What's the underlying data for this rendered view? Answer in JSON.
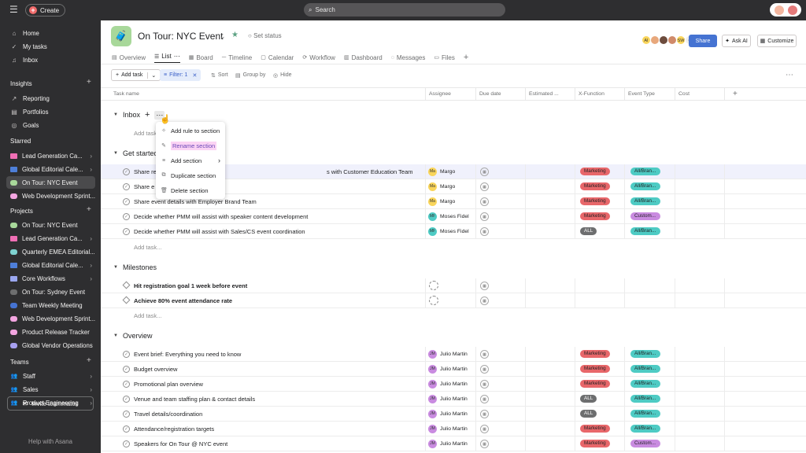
{
  "topbar": {
    "create_label": "Create",
    "search_placeholder": "Search"
  },
  "sidebar": {
    "nav": [
      {
        "label": "Home",
        "icon": "home-icon"
      },
      {
        "label": "My tasks",
        "icon": "check-circle-icon"
      },
      {
        "label": "Inbox",
        "icon": "bell-icon"
      }
    ],
    "insights_title": "Insights",
    "insights": [
      {
        "label": "Reporting"
      },
      {
        "label": "Portfolios"
      },
      {
        "label": "Goals"
      }
    ],
    "starred_title": "Starred",
    "starred": [
      {
        "label": "Lead Generation Ca...",
        "color": "#f06fb5",
        "folder": true
      },
      {
        "label": "Global Editorial Cale...",
        "color": "#4e7fd9",
        "folder": true
      },
      {
        "label": "On Tour: NYC Event",
        "color": "#a8d89a"
      },
      {
        "label": "Web Development Sprint...",
        "color": "#f3a5e0"
      }
    ],
    "projects_title": "Projects",
    "projects": [
      {
        "label": "On Tour: NYC Event",
        "color": "#a8d89a"
      },
      {
        "label": "Lead Generation Ca...",
        "color": "#f06fb5",
        "folder": true
      },
      {
        "label": "Quarterly EMEA Editorial...",
        "color": "#7fd3d1"
      },
      {
        "label": "Global Editorial Cale...",
        "color": "#4e7fd9",
        "folder": true
      },
      {
        "label": "Core Workflows",
        "color": "#9aa7f0",
        "folder": true
      },
      {
        "label": "On Tour: Sydney Event",
        "color": "#6d6e6f"
      },
      {
        "label": "Team Weekly Meeting",
        "color": "#4573d2"
      },
      {
        "label": "Web Development Sprint...",
        "color": "#f3a5e0"
      },
      {
        "label": "Product Release Tracker",
        "color": "#f3a5e0"
      },
      {
        "label": "Global Vendor Operations",
        "color": "#a7a0f0"
      }
    ],
    "teams_title": "Teams",
    "teams": [
      {
        "label": "Staff"
      },
      {
        "label": "Sales"
      },
      {
        "label": "Product Engineering"
      }
    ],
    "invite_label": "Invite teammates",
    "help_label": "Help with Asana"
  },
  "project": {
    "title": "On Tour: NYC Event",
    "set_status": "Set status",
    "share": "Share",
    "ask_ai": "Ask AI",
    "customize": "Customize",
    "member_count": "6",
    "members": [
      {
        "initials": "AI",
        "color": "#f9d55b"
      },
      {
        "initials": "",
        "color": "#e8a87c"
      },
      {
        "initials": "",
        "color": "#6d4c3d"
      },
      {
        "initials": "",
        "color": "#d08a6a"
      },
      {
        "initials": "SW",
        "color": "#f9d55b"
      }
    ]
  },
  "tabs": [
    {
      "label": "Overview"
    },
    {
      "label": "List"
    },
    {
      "label": "Board"
    },
    {
      "label": "Timeline"
    },
    {
      "label": "Calendar"
    },
    {
      "label": "Workflow"
    },
    {
      "label": "Dashboard"
    },
    {
      "label": "Messages"
    },
    {
      "label": "Files"
    }
  ],
  "toolbar": {
    "add_task": "Add task",
    "filter": "Filter: 1",
    "sort": "Sort",
    "group_by": "Group by",
    "hide": "Hide"
  },
  "columns": {
    "task_name": "Task name",
    "assignee": "Assignee",
    "due_date": "Due date",
    "estimated": "Estimated ...",
    "x_function": "X-Function",
    "event_type": "Event Type",
    "cost": "Cost"
  },
  "add_task_row": "Add task...",
  "sections": {
    "inbox": "Inbox",
    "get_started": "Get started",
    "milestones": "Milestones",
    "overview": "Overview"
  },
  "menu": {
    "items": [
      {
        "label": "Add rule to section",
        "icon": "sparkle-icon"
      },
      {
        "label": "Rename section",
        "icon": "pencil-icon"
      },
      {
        "label": "Add section",
        "icon": "add-section-icon"
      },
      {
        "label": "Duplicate section",
        "icon": "duplicate-icon"
      },
      {
        "label": "Delete section",
        "icon": "trash-icon"
      }
    ]
  },
  "get_started_rows": [
    {
      "name": "Share re",
      "name_tail": "s with Customer Education Team",
      "assignee": "Margo",
      "initials": "Ma",
      "avcolor": "#f9d55b",
      "xf": "Marketing",
      "xfcolor": "#e8676a",
      "et": "All/Bran...",
      "etcolor": "#4ecbc4",
      "highlight": true
    },
    {
      "name": "Share e",
      "assignee": "Margo",
      "initials": "Ma",
      "avcolor": "#f9d55b",
      "xf": "Marketing",
      "xfcolor": "#e8676a",
      "et": "All/Bran...",
      "etcolor": "#4ecbc4"
    },
    {
      "name": "Share event details with Employer Brand Team",
      "assignee": "Margo",
      "initials": "Ma",
      "avcolor": "#f9d55b",
      "xf": "Marketing",
      "xfcolor": "#e8676a",
      "et": "All/Bran...",
      "etcolor": "#4ecbc4"
    },
    {
      "name": "Decide whether PMM will assist with speaker content development",
      "assignee": "Moses Fidel",
      "initials": "MF",
      "avcolor": "#4ecbc4",
      "xf": "Marketing",
      "xfcolor": "#e8676a",
      "et": "Custom...",
      "etcolor": "#c98be0"
    },
    {
      "name": "Decide whether PMM will assist  with Sales/CS event coordination",
      "assignee": "Moses Fidel",
      "initials": "MF",
      "avcolor": "#4ecbc4",
      "xf": "ALL",
      "xfcolor": "#6d6e6f",
      "et": "All/Bran...",
      "etcolor": "#4ecbc4"
    }
  ],
  "milestone_rows": [
    {
      "name": "Hit registration goal 1 week before event"
    },
    {
      "name": "Achieve 80% event attendance rate"
    }
  ],
  "overview_rows": [
    {
      "name": "Event brief: Everything you need to know",
      "assignee": "Julio Martin",
      "initials": "JM",
      "xf": "Marketing",
      "xfcolor": "#e8676a",
      "et": "All/Bran...",
      "etcolor": "#4ecbc4"
    },
    {
      "name": "Budget overview",
      "assignee": "Julio Martin",
      "initials": "JM",
      "xf": "Marketing",
      "xfcolor": "#e8676a",
      "et": "All/Bran...",
      "etcolor": "#4ecbc4"
    },
    {
      "name": "Promotional plan overview",
      "assignee": "Julio Martin",
      "initials": "JM",
      "xf": "Marketing",
      "xfcolor": "#e8676a",
      "et": "All/Bran...",
      "etcolor": "#4ecbc4"
    },
    {
      "name": "Venue and team staffing plan & contact details",
      "assignee": "Julio Martin",
      "initials": "JM",
      "xf": "ALL",
      "xfcolor": "#6d6e6f",
      "et": "All/Bran...",
      "etcolor": "#4ecbc4"
    },
    {
      "name": "Travel details/coordination",
      "assignee": "Julio Martin",
      "initials": "JM",
      "xf": "ALL",
      "xfcolor": "#6d6e6f",
      "et": "All/Bran...",
      "etcolor": "#4ecbc4"
    },
    {
      "name": "Attendance/registration targets",
      "assignee": "Julio Martin",
      "initials": "JM",
      "xf": "Marketing",
      "xfcolor": "#e8676a",
      "et": "All/Bran...",
      "etcolor": "#4ecbc4"
    },
    {
      "name": "Speakers for On Tour @ NYC event",
      "assignee": "Julio Martin",
      "initials": "JM",
      "xf": "Marketing",
      "xfcolor": "#e8676a",
      "et": "Custom...",
      "etcolor": "#c98be0"
    }
  ]
}
